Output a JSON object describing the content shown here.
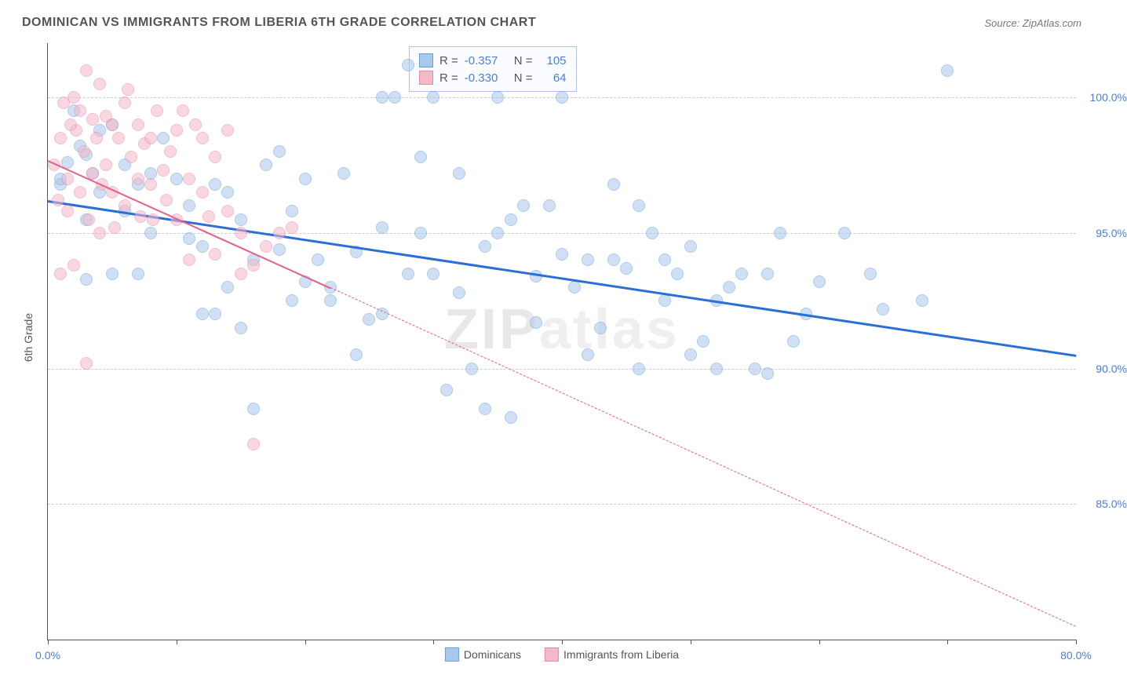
{
  "title": "DOMINICAN VS IMMIGRANTS FROM LIBERIA 6TH GRADE CORRELATION CHART",
  "source": "Source: ZipAtlas.com",
  "y_axis_label": "6th Grade",
  "watermark": "ZIPatlas",
  "chart": {
    "type": "scatter",
    "background_color": "#ffffff",
    "grid_color": "#cccccc",
    "xlim": [
      0,
      80
    ],
    "ylim": [
      80,
      102
    ],
    "x_ticks": [
      0,
      10,
      20,
      30,
      40,
      50,
      60,
      70,
      80
    ],
    "x_tick_labels": {
      "0": "0.0%",
      "80": "80.0%"
    },
    "y_ticks": [
      85,
      90,
      95,
      100
    ],
    "y_tick_labels": [
      "85.0%",
      "90.0%",
      "95.0%",
      "100.0%"
    ],
    "series": [
      {
        "name": "Dominicans",
        "color_fill": "#a8c8ec",
        "color_stroke": "#6b9fd8",
        "fill_opacity": 0.55,
        "marker_size": 14,
        "trend_color": "#2a6fd6",
        "trend_width": 2.5,
        "trend_solid": {
          "x1": 0,
          "y1": 96.2,
          "x2": 80,
          "y2": 90.5
        },
        "trend_dash_right": null,
        "R": "-0.357",
        "N": "105",
        "points": [
          [
            1,
            96.8
          ],
          [
            2,
            99.5
          ],
          [
            2.5,
            98.2
          ],
          [
            1.5,
            97.6
          ],
          [
            3,
            97.9
          ],
          [
            3.5,
            97.2
          ],
          [
            1,
            97.0
          ],
          [
            4,
            96.5
          ],
          [
            5,
            99.0
          ],
          [
            3,
            95.5
          ],
          [
            6,
            97.5
          ],
          [
            7,
            96.8
          ],
          [
            8,
            95.0
          ],
          [
            5,
            93.5
          ],
          [
            10,
            97.0
          ],
          [
            9,
            98.5
          ],
          [
            11,
            96.0
          ],
          [
            12,
            94.5
          ],
          [
            13,
            96.8
          ],
          [
            14,
            93.0
          ],
          [
            12,
            92.0
          ],
          [
            15,
            95.5
          ],
          [
            16,
            94.0
          ],
          [
            17,
            97.5
          ],
          [
            18,
            94.4
          ],
          [
            19,
            92.5
          ],
          [
            20,
            97.0
          ],
          [
            15,
            91.5
          ],
          [
            21,
            94.0
          ],
          [
            22,
            92.5
          ],
          [
            23,
            97.2
          ],
          [
            24,
            94.3
          ],
          [
            25,
            91.8
          ],
          [
            26,
            100.0
          ],
          [
            27,
            100.0
          ],
          [
            28,
            93.5
          ],
          [
            29,
            95.0
          ],
          [
            30,
            100.0
          ],
          [
            31,
            89.2
          ],
          [
            32,
            97.2
          ],
          [
            33,
            90.0
          ],
          [
            34,
            94.5
          ],
          [
            35,
            95.0
          ],
          [
            36,
            88.2
          ],
          [
            37,
            96.0
          ],
          [
            38,
            93.4
          ],
          [
            39,
            96.0
          ],
          [
            40,
            100.0
          ],
          [
            28,
            101.2
          ],
          [
            41,
            93.0
          ],
          [
            42,
            94.0
          ],
          [
            43,
            91.5
          ],
          [
            44,
            96.8
          ],
          [
            45,
            93.7
          ],
          [
            46,
            96.0
          ],
          [
            47,
            95.0
          ],
          [
            48,
            94.0
          ],
          [
            49,
            93.5
          ],
          [
            50,
            94.5
          ],
          [
            51,
            91.0
          ],
          [
            52,
            92.5
          ],
          [
            53,
            93.0
          ],
          [
            54,
            93.5
          ],
          [
            55,
            90.0
          ],
          [
            56,
            93.5
          ],
          [
            57,
            95.0
          ],
          [
            58,
            91.0
          ],
          [
            59,
            92.0
          ],
          [
            60,
            93.2
          ],
          [
            50,
            90.5
          ],
          [
            62,
            95.0
          ],
          [
            64,
            93.5
          ],
          [
            65,
            92.2
          ],
          [
            68,
            92.5
          ],
          [
            70,
            101.0
          ],
          [
            22,
            93.0
          ],
          [
            18,
            98.0
          ],
          [
            35,
            100.0
          ],
          [
            13,
            92.0
          ],
          [
            7,
            93.5
          ],
          [
            16,
            88.5
          ],
          [
            6,
            95.8
          ],
          [
            4,
            98.8
          ],
          [
            26,
            95.2
          ],
          [
            32,
            92.8
          ],
          [
            20,
            93.2
          ],
          [
            24,
            90.5
          ],
          [
            38,
            91.7
          ],
          [
            44,
            94.0
          ],
          [
            14,
            96.5
          ],
          [
            8,
            97.2
          ],
          [
            11,
            94.8
          ],
          [
            19,
            95.8
          ],
          [
            29,
            97.8
          ],
          [
            26,
            92.0
          ],
          [
            42,
            90.5
          ],
          [
            34,
            88.5
          ],
          [
            30,
            93.5
          ],
          [
            40,
            94.2
          ],
          [
            36,
            95.5
          ],
          [
            46,
            90.0
          ],
          [
            48,
            92.5
          ],
          [
            52,
            90.0
          ],
          [
            56,
            89.8
          ],
          [
            3,
            93.3
          ]
        ]
      },
      {
        "name": "Immigrants from Liberia",
        "color_fill": "#f4b8c8",
        "color_stroke": "#e88ba8",
        "fill_opacity": 0.55,
        "marker_size": 14,
        "trend_color": "#e85d8a",
        "trend_width": 2,
        "trend_solid": {
          "x1": 0,
          "y1": 97.7,
          "x2": 22,
          "y2": 93.0
        },
        "trend_dash_right": {
          "x1": 22,
          "y1": 93.0,
          "x2": 80,
          "y2": 80.5
        },
        "trend_dash_left": {
          "x1": 0,
          "y1": 97.7,
          "x2": -2,
          "y2": 98.1
        },
        "R": "-0.330",
        "N": "64",
        "points": [
          [
            0.5,
            97.5
          ],
          [
            1,
            98.5
          ],
          [
            1.2,
            99.8
          ],
          [
            1.5,
            97.0
          ],
          [
            2,
            100.0
          ],
          [
            2.2,
            98.8
          ],
          [
            2.5,
            99.5
          ],
          [
            3,
            101.0
          ],
          [
            2.8,
            98.0
          ],
          [
            3.5,
            99.2
          ],
          [
            4,
            100.5
          ],
          [
            3.2,
            95.5
          ],
          [
            4.5,
            97.5
          ],
          [
            5,
            99.0
          ],
          [
            5.5,
            98.5
          ],
          [
            6,
            99.8
          ],
          [
            5,
            96.5
          ],
          [
            6.5,
            97.8
          ],
          [
            7,
            99.0
          ],
          [
            7.5,
            98.3
          ],
          [
            8,
            98.5
          ],
          [
            6,
            96.0
          ],
          [
            8.5,
            99.5
          ],
          [
            9,
            97.3
          ],
          [
            4,
            95.0
          ],
          [
            9.5,
            98.0
          ],
          [
            10,
            98.8
          ],
          [
            2,
            93.8
          ],
          [
            10.5,
            99.5
          ],
          [
            11,
            97.0
          ],
          [
            8,
            96.8
          ],
          [
            12,
            98.5
          ],
          [
            10,
            95.5
          ],
          [
            13,
            97.8
          ],
          [
            14,
            98.8
          ],
          [
            1,
            93.5
          ],
          [
            15,
            95.0
          ],
          [
            14,
            95.8
          ],
          [
            11,
            94.0
          ],
          [
            16,
            93.8
          ],
          [
            13,
            94.2
          ],
          [
            3,
            90.2
          ],
          [
            17,
            94.5
          ],
          [
            18,
            95.0
          ],
          [
            16,
            87.2
          ],
          [
            19,
            95.2
          ],
          [
            7,
            97.0
          ],
          [
            12,
            96.5
          ],
          [
            15,
            93.5
          ],
          [
            4.5,
            99.3
          ],
          [
            2.5,
            96.5
          ],
          [
            6.2,
            100.3
          ],
          [
            3.8,
            98.5
          ],
          [
            8.2,
            95.5
          ],
          [
            1.8,
            99.0
          ],
          [
            5.2,
            95.2
          ],
          [
            9.2,
            96.2
          ],
          [
            7.2,
            95.6
          ],
          [
            4.2,
            96.8
          ],
          [
            11.5,
            99.0
          ],
          [
            12.5,
            95.6
          ],
          [
            1.5,
            95.8
          ],
          [
            0.8,
            96.2
          ],
          [
            3.5,
            97.2
          ]
        ]
      }
    ]
  },
  "legend_bottom": [
    {
      "label": "Dominicans",
      "fill": "#a8c8ec",
      "stroke": "#6b9fd8"
    },
    {
      "label": "Immigrants from Liberia",
      "fill": "#f4b8c8",
      "stroke": "#e88ba8"
    }
  ],
  "legend_top_labels": {
    "R": "R =",
    "N": "N ="
  }
}
